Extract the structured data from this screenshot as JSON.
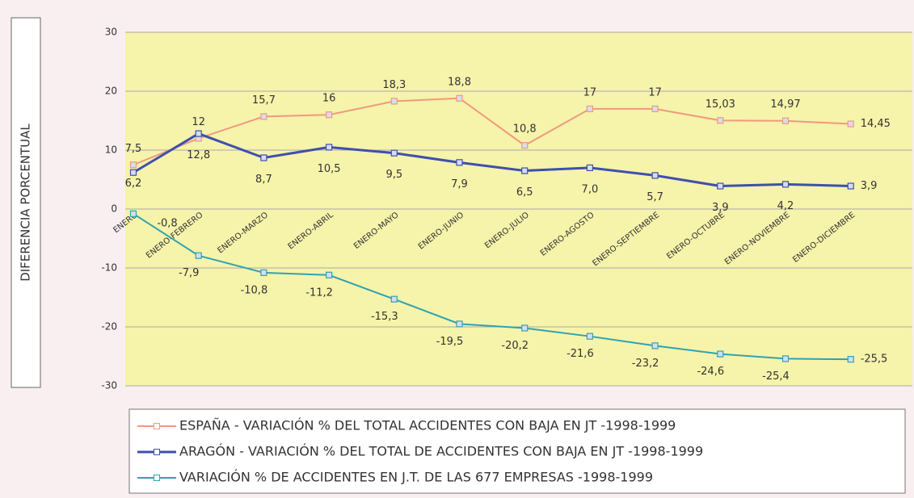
{
  "chart_data": {
    "type": "line",
    "y_label": "DIFERENCIA PORCENTUAL",
    "categories": [
      "ENERO",
      "ENERO-FEBRERO",
      "ENERO-MARZO",
      "ENERO-ABRIL",
      "ENERO-MAYO",
      "ENERO-JUNIO",
      "ENERO-JULIO",
      "ENERO-AGOSTO",
      "ENERO-SEPTIEMBRE",
      "ENERO-OCTUBRE",
      "ENERO-NOVIEMBRE",
      "ENERO-DICIEMBRE"
    ],
    "series": [
      {
        "name": "ESPAÑA - VARIACIÓN % DEL TOTAL ACCIDENTES CON BAJA EN JT -1998-1999",
        "color": "#ef9a7e",
        "values": [
          7.5,
          12,
          15.7,
          16,
          18.3,
          18.8,
          10.8,
          17,
          17,
          15.03,
          14.97,
          14.45
        ],
        "value_labels": [
          "7,5",
          "12",
          "15,7",
          "16",
          "18,3",
          "18,8",
          "10,8",
          "17",
          "17",
          "15,03",
          "14,97",
          "14,45"
        ]
      },
      {
        "name": "ARAGÓN - VARIACIÓN % DEL TOTAL DE ACCIDENTES CON BAJA EN JT -1998-1999",
        "color": "#3f4fae",
        "values": [
          6.2,
          12.8,
          8.7,
          10.5,
          9.5,
          7.9,
          6.5,
          7.0,
          5.7,
          3.9,
          4.2,
          3.9
        ],
        "value_labels": [
          "6,2",
          "12,8",
          "8,7",
          "10,5",
          "9,5",
          "7,9",
          "6,5",
          "7,0",
          "5,7",
          "3,9",
          "4,2",
          "3,9"
        ]
      },
      {
        "name": "VARIACIÓN % DE ACCIDENTES EN J.T. DE LAS 677 EMPRESAS -1998-1999",
        "color": "#2fa3b3",
        "values": [
          -0.8,
          -7.9,
          -10.8,
          -11.2,
          -15.3,
          -19.5,
          -20.2,
          -21.6,
          -23.2,
          -24.6,
          -25.4,
          -25.5
        ],
        "value_labels": [
          "-0,8",
          "-7,9",
          "-10,8",
          "-11,2",
          "-15,3",
          "-19,5",
          "-20,2",
          "-21,6",
          "-23,2",
          "-24,6",
          "-25,4",
          "-25,5"
        ]
      }
    ],
    "ylim": [
      -30,
      30
    ],
    "yticks": [
      30,
      20,
      10,
      0,
      -10,
      -20,
      -30
    ],
    "grid": true
  }
}
